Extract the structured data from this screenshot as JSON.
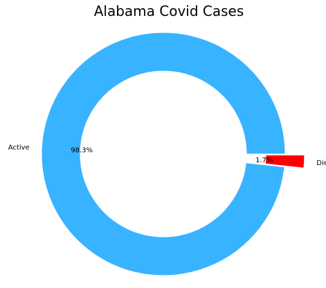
{
  "chart_data": {
    "type": "pie",
    "style": "donut",
    "title": "Alabama Covid  Cases",
    "slices": [
      {
        "label": "Active",
        "value": 98.3,
        "pct_label": "98.3%",
        "color": "#38b3ff",
        "exploded": false
      },
      {
        "label": "Died",
        "value": 1.7,
        "pct_label": "1.7%",
        "color": "#ff0000",
        "exploded": true
      }
    ],
    "start_angle_deg": 0,
    "direction": "counterclockwise",
    "legend": "none"
  }
}
